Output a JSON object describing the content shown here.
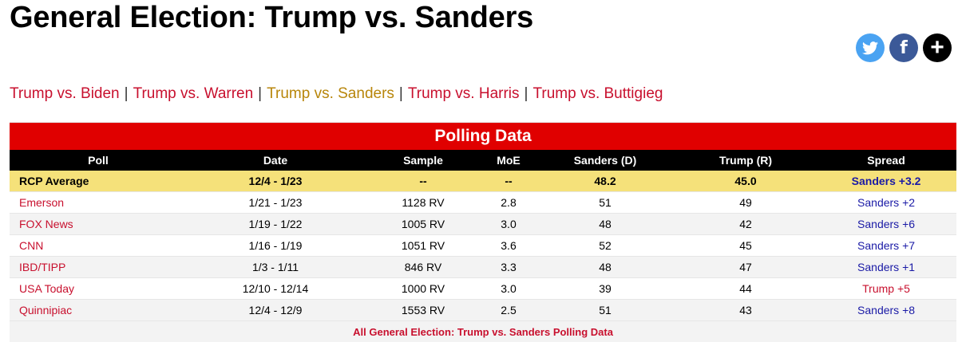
{
  "page": {
    "title": "General Election: Trump vs. Sanders"
  },
  "share": {
    "twitter_icon": "twitter-bird-icon",
    "facebook_glyph": "f",
    "more_glyph": "+"
  },
  "matchups": [
    {
      "label": "Trump vs. Biden",
      "active": false
    },
    {
      "label": "Trump vs. Warren",
      "active": false
    },
    {
      "label": "Trump vs. Sanders",
      "active": true
    },
    {
      "label": "Trump vs. Harris",
      "active": false
    },
    {
      "label": "Trump vs. Buttigieg",
      "active": false
    }
  ],
  "matchup_separator": "|",
  "table": {
    "caption": "Polling Data",
    "headers": [
      "Poll",
      "Date",
      "Sample",
      "MoE",
      "Sanders (D)",
      "Trump (R)",
      "Spread"
    ],
    "rcp_average": {
      "poll": "RCP Average",
      "date": "12/4 - 1/23",
      "sample": "--",
      "moe": "--",
      "sanders": "48.2",
      "trump": "45.0",
      "spread": "Sanders +3.2"
    },
    "rows": [
      {
        "poll": "Emerson",
        "date": "1/21 - 1/23",
        "sample": "1128 RV",
        "moe": "2.8",
        "sanders": "51",
        "trump": "49",
        "spread": "Sanders +2",
        "leader": "dem"
      },
      {
        "poll": "FOX News",
        "date": "1/19 - 1/22",
        "sample": "1005 RV",
        "moe": "3.0",
        "sanders": "48",
        "trump": "42",
        "spread": "Sanders +6",
        "leader": "dem"
      },
      {
        "poll": "CNN",
        "date": "1/16 - 1/19",
        "sample": "1051 RV",
        "moe": "3.6",
        "sanders": "52",
        "trump": "45",
        "spread": "Sanders +7",
        "leader": "dem"
      },
      {
        "poll": "IBD/TIPP",
        "date": "1/3 - 1/11",
        "sample": "846 RV",
        "moe": "3.3",
        "sanders": "48",
        "trump": "47",
        "spread": "Sanders +1",
        "leader": "dem"
      },
      {
        "poll": "USA Today",
        "date": "12/10 - 12/14",
        "sample": "1000 RV",
        "moe": "3.0",
        "sanders": "39",
        "trump": "44",
        "spread": "Trump +5",
        "leader": "rep"
      },
      {
        "poll": "Quinnipiac",
        "date": "12/4 - 12/9",
        "sample": "1553 RV",
        "moe": "2.5",
        "sanders": "51",
        "trump": "43",
        "spread": "Sanders +8",
        "leader": "dem"
      }
    ],
    "footer_link": "All General Election: Trump vs. Sanders Polling Data"
  },
  "colors": {
    "caption_red": "#e00000",
    "link_red": "#c8102e",
    "active_gold": "#b8860b",
    "rcp_yellow": "#f5e17a",
    "dem_blue": "#1a1aa6",
    "twitter_blue": "#4aa3f2",
    "facebook_blue": "#3b5998"
  }
}
